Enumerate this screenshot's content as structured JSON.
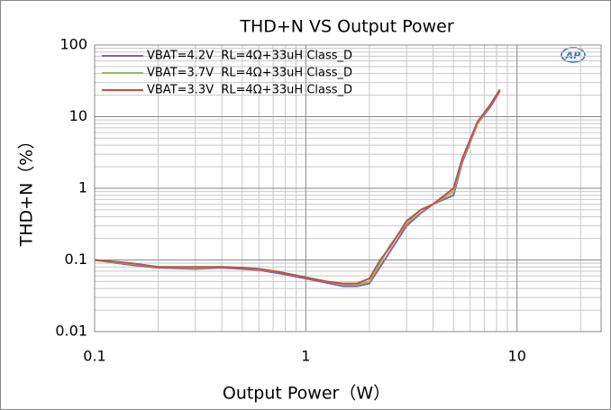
{
  "chart_data": {
    "type": "line",
    "title": "THD+N VS Output Power",
    "xlabel": "Output Power（W）",
    "ylabel": "THD+N（%）",
    "logo": "AP",
    "xscale": "log",
    "yscale": "log",
    "xlim": [
      0.1,
      25
    ],
    "ylim": [
      0.01,
      100
    ],
    "xticks": [
      0.1,
      1,
      10
    ],
    "yticks": [
      0.01,
      0.1,
      1,
      10,
      100
    ],
    "grid": true,
    "minor_grid": true,
    "legend": "upper left",
    "x": [
      0.1,
      0.15,
      0.2,
      0.3,
      0.4,
      0.5,
      0.6,
      0.75,
      1,
      1.25,
      1.5,
      1.75,
      2,
      2.25,
      2.5,
      3,
      3.5,
      4,
      5,
      5.5,
      6.5,
      7.5,
      8.3
    ],
    "series": [
      {
        "name": "VBAT=4.2V  RL=4Ω+33uH Class_D",
        "color": "#8064a2",
        "values": [
          0.1,
          0.085,
          0.078,
          0.075,
          0.078,
          0.075,
          0.072,
          0.065,
          0.055,
          0.048,
          0.043,
          0.043,
          0.047,
          0.08,
          0.13,
          0.3,
          0.45,
          0.6,
          0.8,
          2.3,
          8,
          14,
          23
        ]
      },
      {
        "name": "VBAT=3.7V  RL=4Ω+33uH Class_D",
        "color": "#9bbb59",
        "values": [
          0.1,
          0.088,
          0.08,
          0.078,
          0.08,
          0.078,
          0.074,
          0.068,
          0.057,
          0.05,
          0.046,
          0.045,
          0.05,
          0.09,
          0.16,
          0.32,
          0.5,
          0.6,
          0.9,
          2.5,
          8,
          15,
          24
        ]
      },
      {
        "name": "VBAT=3.3V  RL=4Ω+33uH Class_D",
        "color": "#c0504d",
        "values": [
          0.1,
          0.09,
          0.08,
          0.08,
          0.08,
          0.078,
          0.075,
          0.068,
          0.057,
          0.05,
          0.047,
          0.047,
          0.055,
          0.1,
          0.15,
          0.35,
          0.5,
          0.6,
          1.0,
          2.6,
          8.5,
          15,
          24
        ]
      }
    ]
  }
}
